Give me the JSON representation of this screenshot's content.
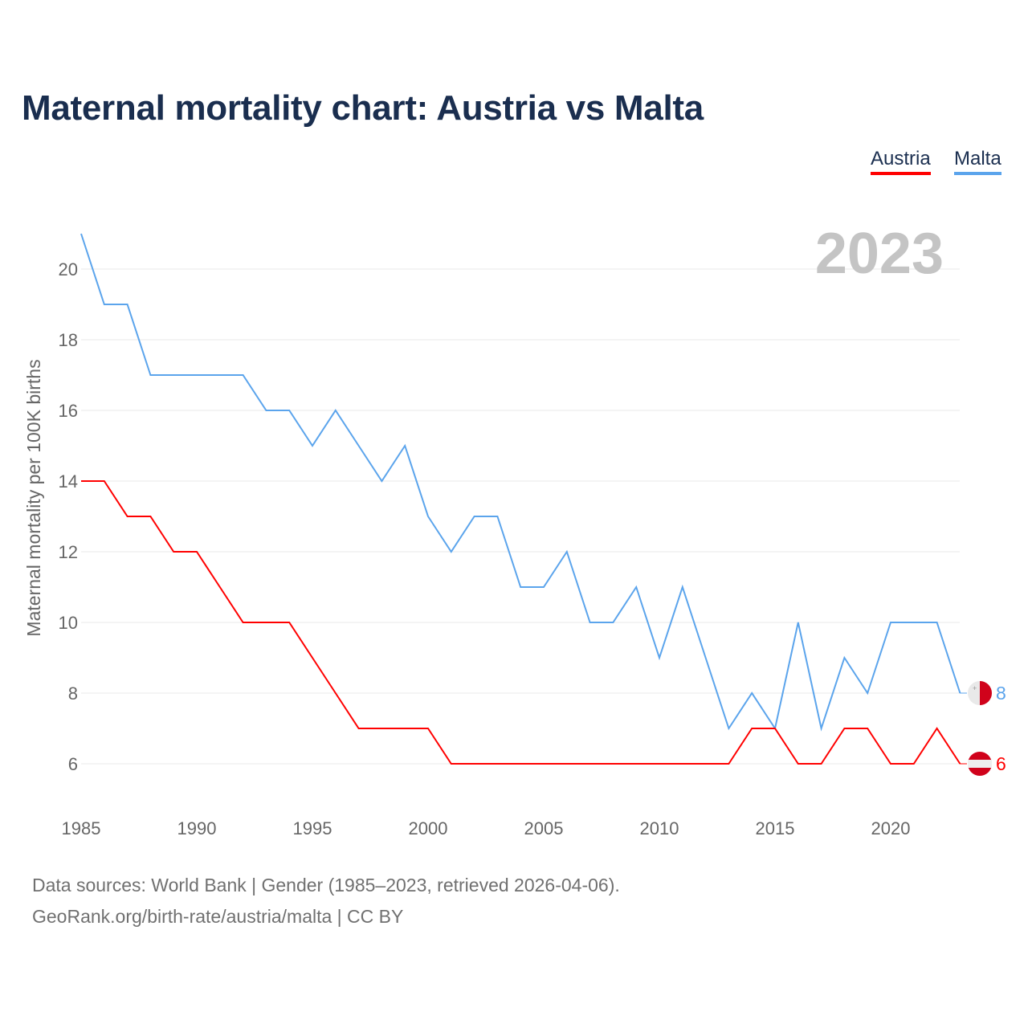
{
  "title": "Maternal mortality chart: Austria vs Malta",
  "legend": {
    "austria": "Austria",
    "malta": "Malta"
  },
  "sources": {
    "line1": "Data sources: World Bank | Gender (1985–2023, retrieved 2026-04-06).",
    "line2": "GeoRank.org/birth-rate/austria/malta | CC BY"
  },
  "chart_data": {
    "type": "line",
    "title": "Maternal mortality chart: Austria vs Malta",
    "year_label": "2023",
    "xlabel": "",
    "ylabel": "Maternal mortality per 100K births",
    "xlim": [
      1985,
      2023
    ],
    "ylim": [
      5,
      21
    ],
    "x_ticks": [
      1985,
      1990,
      1995,
      2000,
      2005,
      2010,
      2015,
      2020
    ],
    "y_ticks": [
      6,
      8,
      10,
      12,
      14,
      16,
      18,
      20
    ],
    "grid": true,
    "legend_position": "top-right",
    "x": [
      1985,
      1986,
      1987,
      1988,
      1989,
      1990,
      1991,
      1992,
      1993,
      1994,
      1995,
      1996,
      1997,
      1998,
      1999,
      2000,
      2001,
      2002,
      2003,
      2004,
      2005,
      2006,
      2007,
      2008,
      2009,
      2010,
      2011,
      2012,
      2013,
      2014,
      2015,
      2016,
      2017,
      2018,
      2019,
      2020,
      2021,
      2022,
      2023
    ],
    "series": [
      {
        "name": "Malta",
        "color": "#5ba4ec",
        "end_label": "8",
        "values": [
          21,
          19,
          19,
          17,
          17,
          17,
          17,
          17,
          16,
          16,
          15,
          16,
          15,
          14,
          15,
          13,
          12,
          13,
          13,
          11,
          11,
          12,
          10,
          10,
          11,
          9,
          11,
          9,
          7,
          8,
          7,
          10,
          7,
          9,
          8,
          10,
          10,
          10,
          8
        ]
      },
      {
        "name": "Austria",
        "color": "#ff0000",
        "end_label": "6",
        "values": [
          14,
          14,
          13,
          13,
          12,
          12,
          11,
          10,
          10,
          10,
          9,
          8,
          7,
          7,
          7,
          7,
          6,
          6,
          6,
          6,
          6,
          6,
          6,
          6,
          6,
          6,
          6,
          6,
          6,
          7,
          7,
          6,
          6,
          7,
          7,
          6,
          6,
          7,
          6
        ]
      }
    ]
  }
}
